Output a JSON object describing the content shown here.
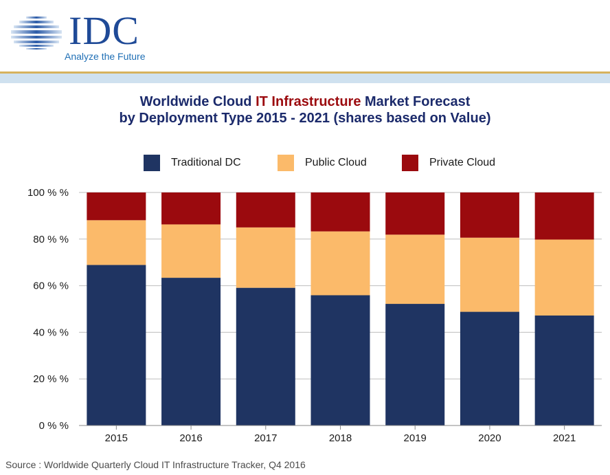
{
  "logo": {
    "brand": "IDC",
    "tagline": "Analyze the Future"
  },
  "title": {
    "line1_pre": "Worldwide Cloud ",
    "line1_highlight": "IT Infrastructure",
    "line1_post": " Market Forecast",
    "line2": "by Deployment Type  2015 - 2021 (shares based on Value)"
  },
  "colors": {
    "traditional": "#1f3462",
    "public": "#fbba6a",
    "private": "#9b0a0e",
    "title": "#1b2a6b",
    "highlight": "#9b0a0e",
    "gridline": "#bdbdbd"
  },
  "chart_data": {
    "type": "bar",
    "stacked": true,
    "categories": [
      "2015",
      "2016",
      "2017",
      "2018",
      "2019",
      "2020",
      "2021"
    ],
    "series": [
      {
        "name": "Traditional DC",
        "values": [
          68.9,
          63.4,
          59.1,
          55.9,
          52.2,
          48.8,
          47.2
        ]
      },
      {
        "name": "Public Cloud",
        "values": [
          19.2,
          22.9,
          25.9,
          27.4,
          29.7,
          31.8,
          32.6
        ]
      },
      {
        "name": "Private Cloud",
        "values": [
          11.9,
          13.7,
          15.0,
          16.7,
          18.1,
          19.4,
          20.2
        ]
      }
    ],
    "yticks": [
      "0 % %",
      "20 % %",
      "40 % %",
      "60 % %",
      "80 % %",
      "100 % %"
    ],
    "ylim": [
      0,
      100
    ],
    "grid": true,
    "legend_position": "top"
  },
  "source": "Source : Worldwide Quarterly Cloud IT Infrastructure Tracker, Q4 2016"
}
